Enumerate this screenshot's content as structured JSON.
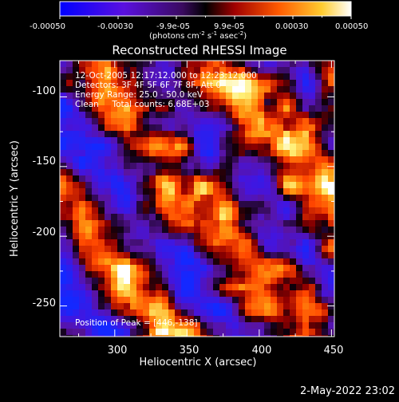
{
  "colorbar": {
    "tick_labels": [
      "-0.00050",
      "-0.00030",
      "-9.9e-05",
      "9.9e-05",
      "0.00030",
      "0.00050"
    ],
    "unit_label": "(photons cm",
    "unit_exp1": "-2",
    "unit_mid": " s",
    "unit_exp2": "-1",
    "unit_mid2": " asec",
    "unit_exp3": "-2",
    "unit_close": ")",
    "colors": {
      "negative_low": "#0000ff",
      "negative_high": "#7a00c8",
      "zero": "#000000",
      "positive_low": "#c00000",
      "positive_mid": "#ff6a00",
      "positive_high": "#ffff60",
      "max": "#ffffff"
    }
  },
  "plot": {
    "title": "Reconstructed RHESSI Image",
    "xlabel": "Heliocentric X (arcsec)",
    "ylabel": "Heliocentric Y (arcsec)",
    "x_ticks": [
      "300",
      "350",
      "400",
      "450"
    ],
    "y_ticks": [
      "-100",
      "-150",
      "-200",
      "-250"
    ],
    "xlim": [
      262,
      452
    ],
    "ylim": [
      -272,
      -74
    ],
    "info_lines": [
      "12-Oct-2005 12:17:12.000 to 12:23:12.000",
      "Detectors: 3F 4F 5F 6F 7F 8F, Att 0",
      "Energy Range: 25.0 - 50.0 keV",
      "Clean     Total counts: 6.68E+03"
    ],
    "peak_label": "Position of Peak = [446,-138]"
  },
  "footer": {
    "timestamp": "2-May-2022 23:02"
  }
}
